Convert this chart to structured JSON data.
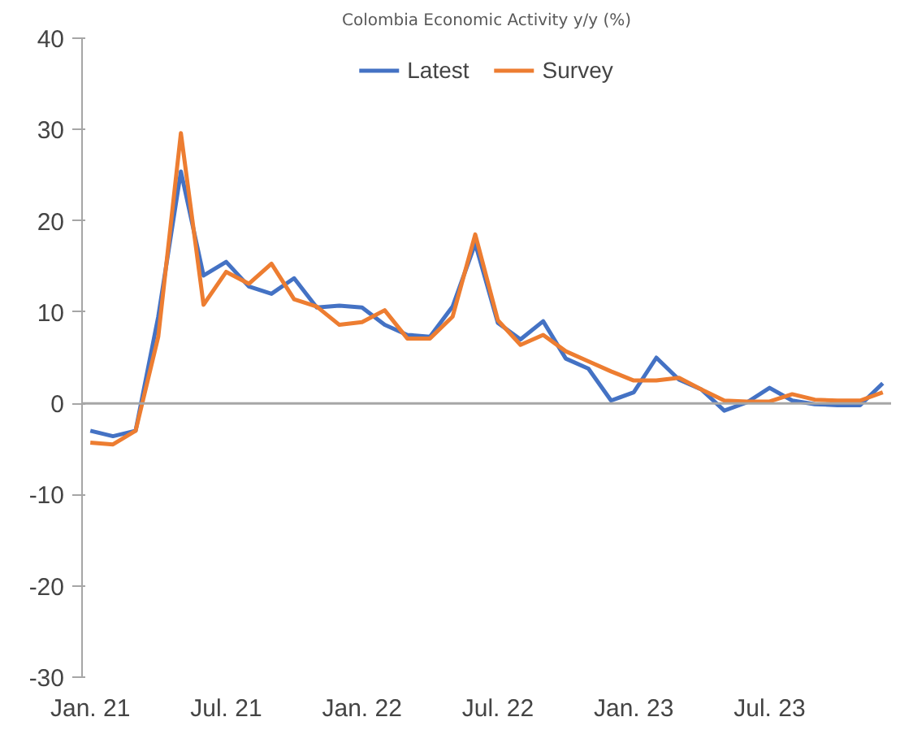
{
  "chart_data": {
    "type": "line",
    "title": "Colombia Economic Activity y/y (%)",
    "x": [
      "2021-01",
      "2021-02",
      "2021-03",
      "2021-04",
      "2021-05",
      "2021-06",
      "2021-07",
      "2021-08",
      "2021-09",
      "2021-10",
      "2021-11",
      "2021-12",
      "2022-01",
      "2022-02",
      "2022-03",
      "2022-04",
      "2022-05",
      "2022-06",
      "2022-07",
      "2022-08",
      "2022-09",
      "2022-10",
      "2022-11",
      "2022-12",
      "2023-01",
      "2023-02",
      "2023-03",
      "2023-04",
      "2023-05",
      "2023-06",
      "2023-07",
      "2023-08",
      "2023-09",
      "2023-10",
      "2023-11",
      "2023-12"
    ],
    "series": [
      {
        "name": "Latest",
        "color": "#4472c4",
        "values": [
          -3,
          -3.6,
          -3,
          9.5,
          25.4,
          14,
          15.5,
          12.8,
          12,
          13.7,
          10.5,
          10.7,
          10.5,
          8.6,
          7.5,
          7.3,
          10.6,
          17.5,
          8.8,
          7,
          9,
          4.9,
          3.8,
          0.3,
          1.2,
          5,
          2.6,
          1.5,
          -0.8,
          0.1,
          1.7,
          0.3,
          -0.1,
          -0.2,
          -0.2,
          2.2
        ]
      },
      {
        "name": "Survey",
        "color": "#ed7d31",
        "values": [
          -4.3,
          -4.5,
          -3,
          7.3,
          29.6,
          10.8,
          14.4,
          13.1,
          15.3,
          11.4,
          10.6,
          8.6,
          8.9,
          10.2,
          7.1,
          7.1,
          9.5,
          18.5,
          9.1,
          6.4,
          7.5,
          5.7,
          4.6,
          3.5,
          2.5,
          2.5,
          2.8,
          1.5,
          0.3,
          0.2,
          0.2,
          1,
          0.4,
          0.3,
          0.3,
          1.2
        ]
      }
    ],
    "xlim": [
      "2020-12-20",
      "2023-12-12"
    ],
    "xticks": [
      {
        "value": "2021-01",
        "label": "Jan. 21"
      },
      {
        "value": "2021-07",
        "label": "Jul. 21"
      },
      {
        "value": "2022-01",
        "label": "Jan. 22"
      },
      {
        "value": "2022-07",
        "label": "Jul. 22"
      },
      {
        "value": "2023-01",
        "label": "Jan. 23"
      },
      {
        "value": "2023-07",
        "label": "Jul. 23"
      }
    ],
    "ylim": [
      -30,
      40
    ],
    "yticks": [
      -30,
      -20,
      -10,
      0,
      10,
      20,
      30,
      40
    ],
    "ref_lines": [
      {
        "axis": "y",
        "value": 0,
        "color": "#a6a6a6"
      }
    ],
    "grid": false,
    "legend": "top",
    "marker": "none",
    "line_style": "solid"
  }
}
